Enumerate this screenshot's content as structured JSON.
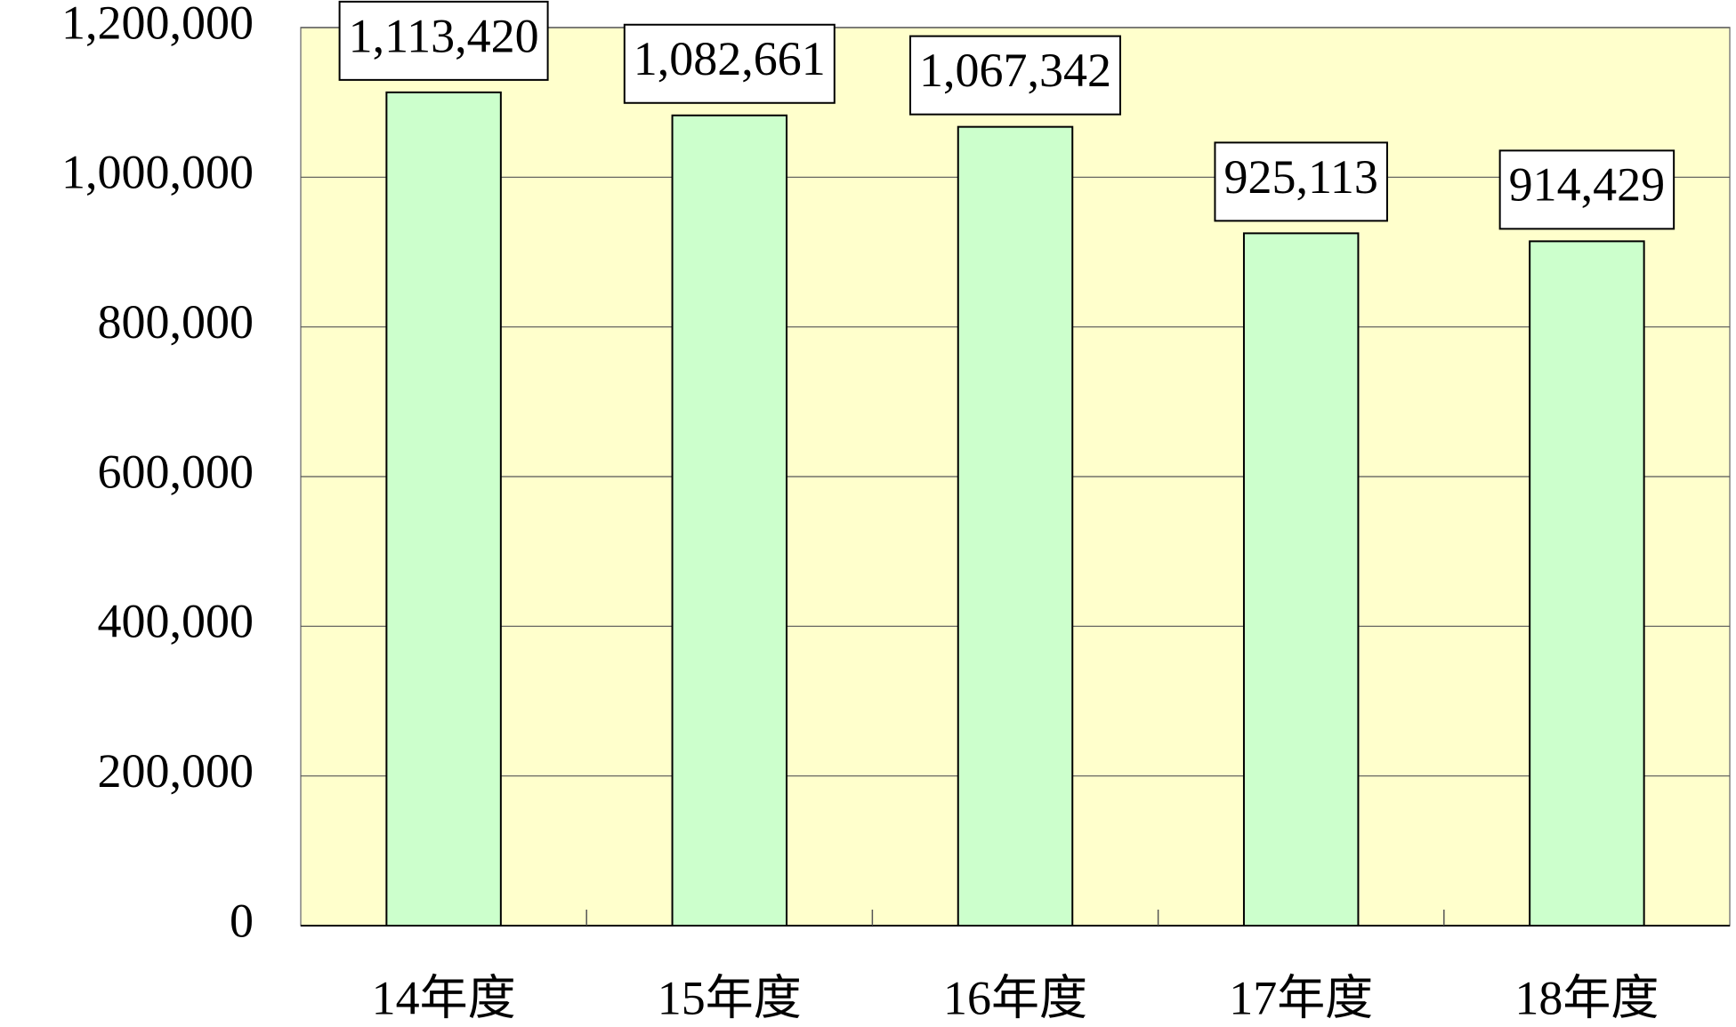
{
  "chart_data": {
    "type": "bar",
    "categories": [
      "14年度",
      "15年度",
      "16年度",
      "17年度",
      "18年度"
    ],
    "values": [
      1113420,
      1082661,
      1067342,
      925113,
      914429
    ],
    "value_labels": [
      "1,113,420",
      "1,082,661",
      "1,067,342",
      "925,113",
      "914,429"
    ],
    "color": "#ccffcc",
    "ylim": [
      0,
      1200000
    ],
    "yticks": [
      0,
      {
        "value": 200000,
        "label": "200,000"
      },
      {
        "value": 400000,
        "label": "400,000"
      },
      {
        "value": 600000,
        "label": "600,000"
      },
      {
        "value": 800000,
        "label": "800,000"
      },
      {
        "value": 1000000,
        "label": "1,000,000"
      },
      {
        "value": 1200000,
        "label": "1,200,000"
      }
    ],
    "grid": true
  }
}
